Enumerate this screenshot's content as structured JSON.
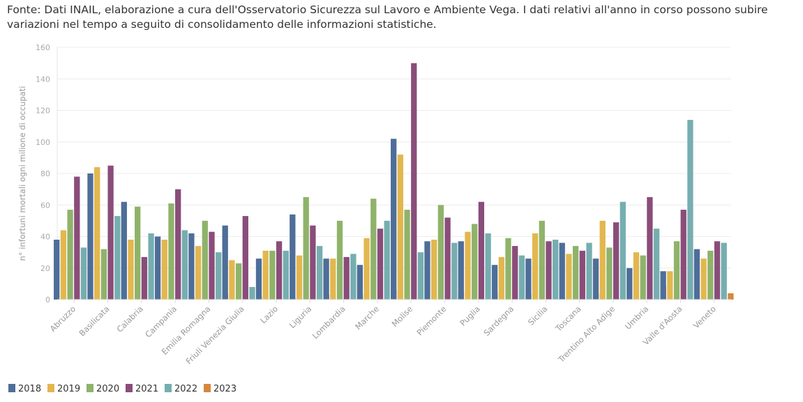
{
  "note": "Fonte: Dati INAIL, elaborazione a cura dell'Osservatorio Sicurezza sul Lavoro e Ambiente Vega. I dati relativi all'anno in corso possono subire variazioni nel tempo a seguito di consolidamento delle informazioni statistiche.",
  "chart_data": {
    "type": "bar",
    "title": "",
    "xlabel": "",
    "ylabel": "n° infortuni mortali ogni milione di occupati",
    "ylim": [
      0,
      160
    ],
    "yticks": [
      0,
      20,
      40,
      60,
      80,
      100,
      120,
      140,
      160
    ],
    "grid": true,
    "legend_position": "bottom-left",
    "categories": [
      "Abruzzo",
      "Basilicata",
      "Calabria",
      "Campania",
      "Emilia Romagna",
      "Friuli Venezia Giulia",
      "Lazio",
      "Liguria",
      "Lombardia",
      "Marche",
      "Molise",
      "Piemonte",
      "Puglia",
      "Sardegna",
      "Sicilia",
      "Toscana",
      "Trentino Alto Adige",
      "Umbria",
      "Valle d'Aosta",
      "Veneto"
    ],
    "series": [
      {
        "name": "2018",
        "color": "#4e6e99",
        "values": [
          38,
          80,
          62,
          40,
          42,
          47,
          26,
          54,
          26,
          22,
          102,
          37,
          37,
          22,
          26,
          36,
          26,
          20,
          18,
          32
        ]
      },
      {
        "name": "2019",
        "color": "#e2b74f",
        "values": [
          44,
          84,
          38,
          38,
          34,
          25,
          31,
          28,
          26,
          39,
          92,
          38,
          43,
          27,
          42,
          29,
          50,
          30,
          18,
          26
        ]
      },
      {
        "name": "2020",
        "color": "#8fb36a",
        "values": [
          57,
          32,
          59,
          61,
          50,
          23,
          31,
          65,
          50,
          64,
          57,
          60,
          48,
          39,
          50,
          34,
          33,
          28,
          37,
          31
        ]
      },
      {
        "name": "2021",
        "color": "#8a4d7a",
        "values": [
          78,
          85,
          27,
          70,
          43,
          53,
          37,
          47,
          27,
          45,
          150,
          52,
          62,
          34,
          37,
          31,
          49,
          65,
          57,
          37
        ]
      },
      {
        "name": "2022",
        "color": "#76aeb0",
        "values": [
          33,
          53,
          42,
          44,
          30,
          8,
          31,
          34,
          29,
          50,
          30,
          36,
          42,
          28,
          38,
          36,
          62,
          45,
          114,
          36
        ]
      },
      {
        "name": "2023",
        "color": "#d4883e",
        "values": [
          2,
          null,
          2,
          2,
          3.5,
          2,
          1,
          3,
          3,
          6,
          null,
          5.5,
          4.5,
          3.5,
          1.5,
          4,
          null,
          8.5,
          null,
          4
        ]
      }
    ]
  }
}
